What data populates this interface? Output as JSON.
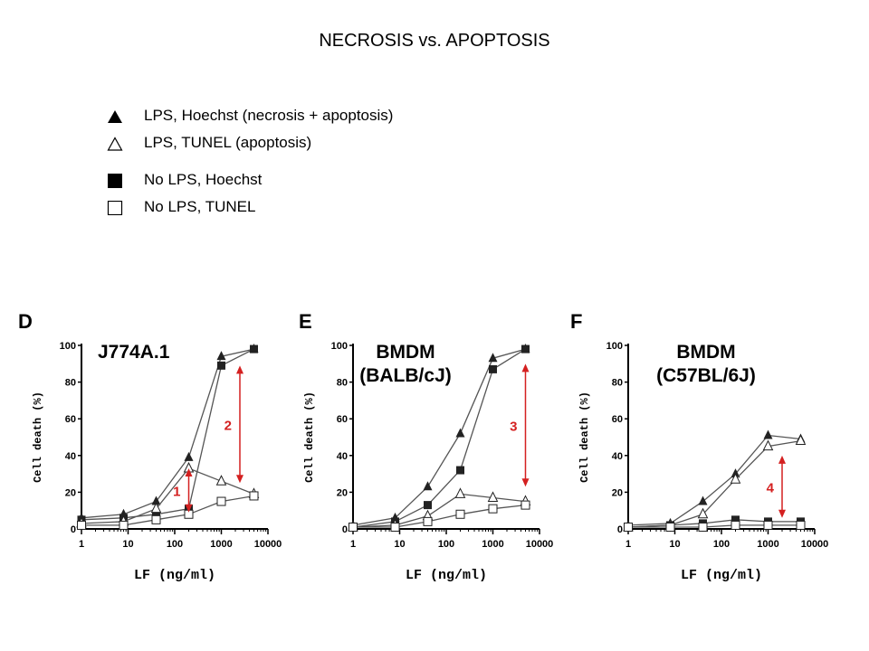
{
  "title": "NECROSIS vs. APOPTOSIS",
  "legend": [
    {
      "marker": "filled-triangle",
      "label": "LPS, Hoechst (necrosis + apoptosis)"
    },
    {
      "marker": "open-triangle",
      "label": "LPS, TUNEL (apoptosis)"
    },
    {
      "marker": "filled-square",
      "label": "No LPS, Hoechst"
    },
    {
      "marker": "open-square",
      "label": "No LPS, TUNEL"
    }
  ],
  "colors": {
    "line": "#555555",
    "marker": "#222222",
    "arrow": "#d42020"
  },
  "chart_data": [
    {
      "type": "line",
      "panel": "D",
      "annotation_title": [
        "J774A.1"
      ],
      "xlabel": "LF (ng/ml)",
      "ylabel": "Cell death (%)",
      "xscale": "log",
      "xlim": [
        1,
        10000
      ],
      "ylim": [
        0,
        100
      ],
      "xticks": [
        "1",
        "10",
        "100",
        "1000",
        "10000"
      ],
      "yticks": [
        "0",
        "20",
        "40",
        "60",
        "80",
        "100"
      ],
      "series": [
        {
          "marker": "filled-triangle",
          "x": [
            1,
            8,
            40,
            200,
            1000,
            5000
          ],
          "y": [
            6,
            8,
            15,
            39,
            94,
            98
          ]
        },
        {
          "marker": "filled-square",
          "x": [
            1,
            8,
            40,
            200,
            1000,
            5000
          ],
          "y": [
            5,
            6,
            8,
            11,
            89,
            98
          ]
        },
        {
          "marker": "open-triangle",
          "x": [
            1,
            8,
            40,
            200,
            1000,
            5000
          ],
          "y": [
            3,
            4,
            11,
            33,
            26,
            19
          ]
        },
        {
          "marker": "open-square",
          "x": [
            1,
            8,
            40,
            200,
            1000,
            5000
          ],
          "y": [
            2,
            2,
            5,
            8,
            15,
            18
          ]
        }
      ],
      "arrows": [
        {
          "label": "1",
          "x": 200,
          "y_top": 32,
          "y_bottom": 10
        },
        {
          "label": "2",
          "x": 2500,
          "y_top": 88,
          "y_bottom": 26
        }
      ]
    },
    {
      "type": "line",
      "panel": "E",
      "annotation_title": [
        "BMDM",
        "(BALB/cJ)"
      ],
      "xlabel": "LF (ng/ml)",
      "ylabel": "Cell death (%)",
      "xscale": "log",
      "xlim": [
        1,
        10000
      ],
      "ylim": [
        0,
        100
      ],
      "xticks": [
        "1",
        "10",
        "100",
        "1000",
        "10000"
      ],
      "yticks": [
        "0",
        "20",
        "40",
        "60",
        "80",
        "100"
      ],
      "series": [
        {
          "marker": "filled-triangle",
          "x": [
            1,
            8,
            40,
            200,
            1000,
            5000
          ],
          "y": [
            2,
            6,
            23,
            52,
            93,
            98
          ]
        },
        {
          "marker": "filled-square",
          "x": [
            1,
            8,
            40,
            200,
            1000,
            5000
          ],
          "y": [
            1,
            4,
            13,
            32,
            87,
            98
          ]
        },
        {
          "marker": "open-triangle",
          "x": [
            1,
            8,
            40,
            200,
            1000,
            5000
          ],
          "y": [
            1,
            2,
            7,
            19,
            17,
            15
          ]
        },
        {
          "marker": "open-square",
          "x": [
            1,
            8,
            40,
            200,
            1000,
            5000
          ],
          "y": [
            1,
            1,
            4,
            8,
            11,
            13
          ]
        }
      ],
      "arrows": [
        {
          "label": "3",
          "x": 5000,
          "y_top": 89,
          "y_bottom": 24
        }
      ]
    },
    {
      "type": "line",
      "panel": "F",
      "annotation_title": [
        "BMDM",
        "(C57BL/6J)"
      ],
      "xlabel": "LF (ng/ml)",
      "ylabel": "Cell death (%)",
      "xscale": "log",
      "xlim": [
        1,
        10000
      ],
      "ylim": [
        0,
        100
      ],
      "xticks": [
        "1",
        "10",
        "100",
        "1000",
        "10000"
      ],
      "yticks": [
        "0",
        "20",
        "40",
        "60",
        "80",
        "100"
      ],
      "series": [
        {
          "marker": "filled-triangle",
          "x": [
            1,
            8,
            40,
            200,
            1000,
            5000
          ],
          "y": [
            2,
            3,
            15,
            30,
            51,
            49
          ]
        },
        {
          "marker": "open-triangle",
          "x": [
            1,
            8,
            40,
            200,
            1000,
            5000
          ],
          "y": [
            1,
            2,
            8,
            27,
            45,
            48
          ]
        },
        {
          "marker": "filled-square",
          "x": [
            1,
            8,
            40,
            200,
            1000,
            5000
          ],
          "y": [
            1,
            2,
            3,
            5,
            4,
            4
          ]
        },
        {
          "marker": "open-square",
          "x": [
            1,
            8,
            40,
            200,
            1000,
            5000
          ],
          "y": [
            1,
            1,
            1,
            2,
            2,
            2
          ]
        }
      ],
      "arrows": [
        {
          "label": "4",
          "x": 2000,
          "y_top": 39,
          "y_bottom": 7
        }
      ]
    }
  ]
}
